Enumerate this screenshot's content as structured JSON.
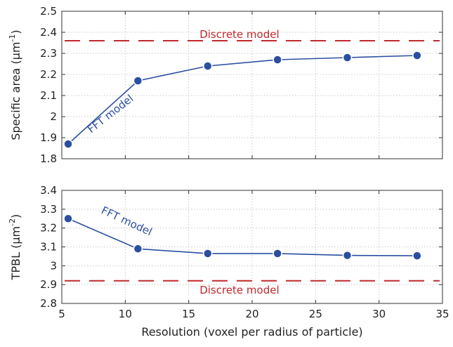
{
  "chart_data": [
    {
      "type": "line",
      "ylabel": "Specific area (μm⁻¹)",
      "ylabel_main": "Specific area (μm",
      "ylabel_sup": "-1",
      "ylabel_close": ")",
      "ylim": [
        1.8,
        2.5
      ],
      "yticks": [
        "1.8",
        "1.9",
        "2",
        "2.1",
        "2.2",
        "2.3",
        "2.4",
        "2.5"
      ],
      "xlim": [
        5,
        35
      ],
      "grid": true,
      "series": [
        {
          "name": "FFT model",
          "x": [
            5.5,
            11,
            16.5,
            22,
            27.5,
            33
          ],
          "values": [
            1.87,
            2.17,
            2.24,
            2.27,
            2.28,
            2.29
          ]
        }
      ],
      "reference_lines": [
        {
          "name": "Discrete model",
          "value": 2.36
        }
      ]
    },
    {
      "type": "line",
      "ylabel": "TPBL (μm⁻²)",
      "ylabel_main": "TPBL (μm",
      "ylabel_sup": "-2",
      "ylabel_close": ")",
      "ylim": [
        2.8,
        3.4
      ],
      "yticks": [
        "2.8",
        "2.9",
        "3",
        "3.1",
        "3.2",
        "3.3",
        "3.4"
      ],
      "xlim": [
        5,
        35
      ],
      "xticks": [
        "5",
        "10",
        "15",
        "20",
        "25",
        "30",
        "35"
      ],
      "xlabel": "Resolution (voxel per radius of particle)",
      "grid": true,
      "series": [
        {
          "name": "FFT model",
          "x": [
            5.5,
            11,
            16.5,
            22,
            27.5,
            33
          ],
          "values": [
            3.25,
            3.09,
            3.065,
            3.065,
            3.055,
            3.053
          ]
        }
      ],
      "reference_lines": [
        {
          "name": "Discrete model",
          "value": 2.92
        }
      ]
    }
  ],
  "colors": {
    "series": "#2b4fa0",
    "reference": "#c0282c",
    "grid": "#c8c8c8",
    "axis": "#333333"
  }
}
